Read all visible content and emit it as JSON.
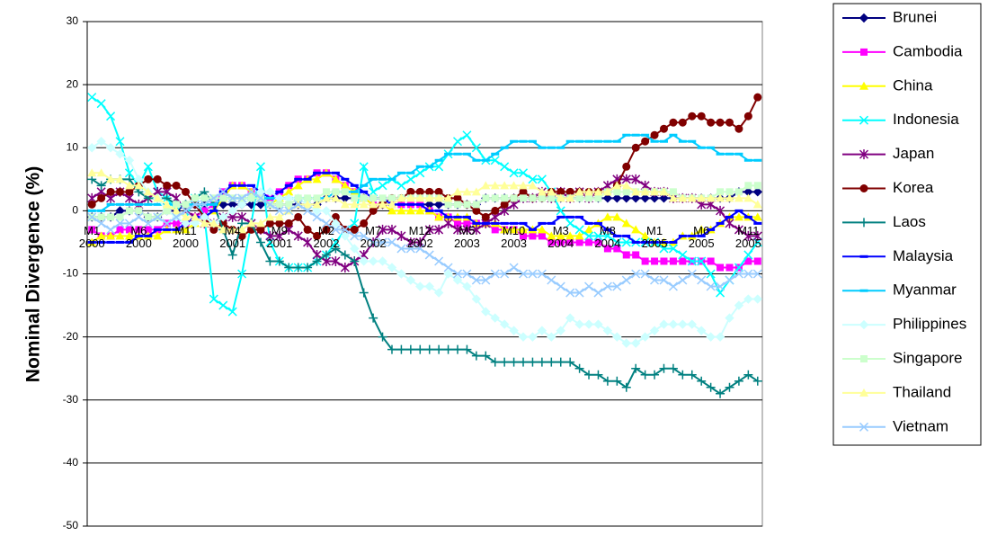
{
  "chart_data": {
    "type": "line",
    "ylabel": "Nominal Divergence (%)",
    "categories": [
      "M1 2000",
      null,
      null,
      null,
      null,
      "M6 2000",
      null,
      null,
      null,
      null,
      "M11 2000",
      null,
      null,
      null,
      null,
      "M4 2001",
      null,
      null,
      null,
      null,
      "M9 2001",
      null,
      null,
      null,
      null,
      "M2 2002",
      null,
      null,
      null,
      null,
      "M7 2002",
      null,
      null,
      null,
      null,
      "M12 2002",
      null,
      null,
      null,
      null,
      "M5 2003",
      null,
      null,
      null,
      null,
      "M10 2003",
      null,
      null,
      null,
      null,
      "M3 2004",
      null,
      null,
      null,
      null,
      "M8 2004",
      null,
      null,
      null,
      null,
      "M1 2005",
      null,
      null,
      null,
      null,
      "M6 2005",
      null,
      null,
      null,
      null,
      "M11 2005",
      null
    ],
    "ylim": [
      -50,
      30
    ],
    "yticks": [
      -50,
      -40,
      -30,
      -20,
      -10,
      0,
      10,
      20,
      30
    ],
    "grid": true,
    "legend": "right",
    "series": [
      {
        "name": "Brunei",
        "color": "#000080",
        "marker": "diamond",
        "values": [
          -1,
          -1,
          -1,
          0,
          0,
          0,
          -1,
          -1,
          0,
          0,
          1,
          1,
          1,
          1,
          1,
          1,
          1,
          1,
          1,
          1,
          1,
          1,
          1,
          1,
          1,
          2,
          2,
          2,
          2,
          2,
          1,
          1,
          1,
          1,
          1,
          1,
          1,
          1,
          1,
          1,
          1,
          1,
          2,
          2,
          2,
          2,
          2,
          2,
          2,
          2,
          2,
          2,
          2,
          2,
          2,
          2,
          2,
          2,
          2,
          2,
          2,
          2,
          2,
          2,
          2,
          2,
          2,
          2,
          2,
          3,
          3,
          3
        ]
      },
      {
        "name": "Cambodia",
        "color": "#ff00ff",
        "marker": "square",
        "values": [
          -3,
          -4,
          -4,
          -3,
          -3,
          -3,
          -3,
          -3,
          -2,
          -2,
          -2,
          -1,
          0,
          1,
          3,
          4,
          4,
          3,
          2,
          2,
          3,
          4,
          5,
          5,
          6,
          6,
          5,
          4,
          3,
          2,
          1,
          1,
          1,
          1,
          1,
          1,
          0,
          -1,
          -1,
          -2,
          -2,
          -2,
          -2,
          -3,
          -3,
          -3,
          -4,
          -4,
          -4,
          -5,
          -5,
          -5,
          -5,
          -5,
          -5,
          -6,
          -6,
          -7,
          -7,
          -8,
          -8,
          -8,
          -8,
          -8,
          -8,
          -8,
          -8,
          -9,
          -9,
          -9,
          -8,
          -8
        ]
      },
      {
        "name": "China",
        "color": "#ffff00",
        "marker": "triangle",
        "values": [
          -5,
          -4,
          -4,
          -4,
          -4,
          -4,
          -4,
          -4,
          -3,
          -3,
          -3,
          -2,
          -1,
          0,
          2,
          4,
          4,
          3,
          2,
          1,
          2,
          3,
          4,
          5,
          5,
          6,
          5,
          4,
          3,
          2,
          1,
          1,
          0,
          0,
          0,
          0,
          0,
          -1,
          -1,
          -1,
          -1,
          -2,
          -2,
          -2,
          -3,
          -3,
          -3,
          -3,
          -3,
          -4,
          -4,
          -4,
          -4,
          -3,
          -2,
          -1,
          -1,
          -2,
          -3,
          -4,
          -5,
          -5,
          -5,
          -4,
          -4,
          -3,
          -3,
          -2,
          -1,
          -1,
          -1,
          -1
        ]
      },
      {
        "name": "Indonesia",
        "color": "#00ffff",
        "marker": "x",
        "values": [
          18,
          17,
          15,
          11,
          6,
          4,
          7,
          3,
          2,
          0,
          -1,
          2,
          -1,
          -14,
          -15,
          -16,
          -10,
          -2,
          7,
          -5,
          -8,
          -9,
          -9,
          -9,
          -8,
          -7,
          -5,
          -3,
          -2,
          7,
          3,
          4,
          5,
          4,
          5,
          6,
          7,
          7,
          9,
          11,
          12,
          10,
          8,
          8,
          7,
          6,
          6,
          5,
          5,
          3,
          0,
          -2,
          -3,
          -4,
          -4,
          -4,
          -5,
          -5,
          -5,
          -5,
          -5,
          -6,
          -6,
          -7,
          -8,
          -8,
          -10,
          -13,
          -11,
          -9,
          -7,
          -5
        ]
      },
      {
        "name": "Japan",
        "color": "#800080",
        "marker": "star",
        "values": [
          2,
          3,
          2,
          3,
          2,
          1,
          2,
          3,
          3,
          2,
          0,
          -1,
          -2,
          -2,
          -1,
          -1,
          -1,
          -2,
          -3,
          -4,
          -4,
          -3,
          -4,
          -5,
          -7,
          -8,
          -8,
          -9,
          -8,
          -7,
          -5,
          -3,
          -3,
          -4,
          -5,
          -5,
          -3,
          -3,
          -2,
          -3,
          -3,
          -3,
          -2,
          -1,
          0,
          1,
          2,
          2,
          3,
          2,
          3,
          2,
          3,
          2,
          3,
          4,
          5,
          5,
          5,
          4,
          3,
          3,
          2,
          2,
          2,
          1,
          1,
          0,
          -2,
          -3,
          -4,
          -4
        ]
      },
      {
        "name": "Korea",
        "color": "#800000",
        "marker": "circle",
        "values": [
          1,
          2,
          3,
          3,
          3,
          4,
          5,
          5,
          4,
          4,
          3,
          1,
          -1,
          -3,
          -2,
          -3,
          -4,
          -3,
          -3,
          -2,
          -2,
          -2,
          -1,
          -3,
          -4,
          -3,
          -1,
          -3,
          -3,
          -2,
          0,
          1,
          2,
          2,
          3,
          3,
          3,
          3,
          2,
          2,
          1,
          0,
          -1,
          0,
          1,
          2,
          3,
          2,
          2,
          3,
          3,
          3,
          3,
          3,
          3,
          3,
          4,
          7,
          10,
          11,
          12,
          13,
          14,
          14,
          15,
          15,
          14,
          14,
          14,
          13,
          15,
          18
        ]
      },
      {
        "name": "Laos",
        "color": "#008080",
        "marker": "plus",
        "values": [
          5,
          4,
          5,
          5,
          5,
          3,
          2,
          2,
          2,
          1,
          1,
          2,
          3,
          1,
          -3,
          -7,
          -2,
          -2,
          -5,
          -8,
          -8,
          -9,
          -9,
          -9,
          -8,
          -7,
          -6,
          -7,
          -8,
          -13,
          -17,
          -20,
          -22,
          -22,
          -22,
          -22,
          -22,
          -22,
          -22,
          -22,
          -22,
          -23,
          -23,
          -24,
          -24,
          -24,
          -24,
          -24,
          -24,
          -24,
          -24,
          -24,
          -25,
          -26,
          -26,
          -27,
          -27,
          -28,
          -25,
          -26,
          -26,
          -25,
          -25,
          -26,
          -26,
          -27,
          -28,
          -29,
          -28,
          -27,
          -26,
          -27
        ]
      },
      {
        "name": "Malaysia",
        "color": "#0000ff",
        "marker": "dash",
        "values": [
          -5,
          -5,
          -5,
          -5,
          -5,
          -4,
          -4,
          -3,
          -3,
          -3,
          -2,
          -1,
          -1,
          0,
          3,
          4,
          4,
          4,
          3,
          2,
          3,
          4,
          5,
          5,
          6,
          6,
          6,
          5,
          4,
          3,
          2,
          2,
          1,
          1,
          1,
          1,
          0,
          0,
          -1,
          -1,
          -1,
          -2,
          -2,
          -2,
          -2,
          -2,
          -2,
          -3,
          -2,
          -2,
          -1,
          -1,
          -1,
          -2,
          -2,
          -3,
          -4,
          -4,
          -5,
          -5,
          -5,
          -5,
          -5,
          -4,
          -4,
          -4,
          -3,
          -2,
          -1,
          0,
          -1,
          -2
        ]
      },
      {
        "name": "Myanmar",
        "color": "#00ccff",
        "marker": "dash",
        "values": [
          0,
          0,
          1,
          1,
          1,
          1,
          1,
          1,
          1,
          1,
          1,
          1,
          1,
          1,
          2,
          2,
          2,
          2,
          2,
          2,
          2,
          2,
          2,
          2,
          2,
          2,
          3,
          3,
          3,
          4,
          5,
          5,
          5,
          6,
          6,
          7,
          7,
          8,
          9,
          9,
          9,
          8,
          8,
          9,
          10,
          11,
          11,
          11,
          10,
          10,
          10,
          11,
          11,
          11,
          11,
          11,
          11,
          12,
          12,
          12,
          11,
          11,
          12,
          11,
          11,
          10,
          10,
          9,
          9,
          9,
          8,
          8
        ]
      },
      {
        "name": "Philippines",
        "color": "#ccffff",
        "marker": "diamond",
        "values": [
          10,
          11,
          10,
          9,
          8,
          5,
          3,
          2,
          0,
          -1,
          -2,
          -2,
          -1,
          -2,
          -1,
          0,
          1,
          2,
          3,
          3,
          2,
          2,
          2,
          1,
          0,
          0,
          -2,
          -4,
          -6,
          -8,
          -8,
          -8,
          -9,
          -10,
          -11,
          -12,
          -12,
          -13,
          -10,
          -11,
          -12,
          -14,
          -16,
          -17,
          -18,
          -19,
          -20,
          -20,
          -19,
          -20,
          -19,
          -17,
          -18,
          -18,
          -18,
          -19,
          -20,
          -21,
          -21,
          -20,
          -19,
          -18,
          -18,
          -18,
          -18,
          -19,
          -20,
          -20,
          -17,
          -15,
          -14,
          -14
        ]
      },
      {
        "name": "Singapore",
        "color": "#ccffcc",
        "marker": "square",
        "values": [
          -1,
          -1,
          -1,
          -1,
          0,
          0,
          -1,
          -1,
          0,
          1,
          1,
          2,
          2,
          2,
          2,
          2,
          2,
          2,
          2,
          1,
          1,
          1,
          2,
          2,
          2,
          3,
          3,
          3,
          2,
          2,
          2,
          2,
          2,
          2,
          2,
          2,
          2,
          2,
          1,
          1,
          1,
          1,
          2,
          2,
          2,
          2,
          2,
          2,
          2,
          2,
          2,
          2,
          2,
          2,
          2,
          3,
          3,
          3,
          3,
          3,
          3,
          3,
          3,
          2,
          2,
          2,
          2,
          3,
          3,
          3,
          4,
          4
        ]
      },
      {
        "name": "Thailand",
        "color": "#ffff99",
        "marker": "triangle",
        "values": [
          6,
          6,
          5,
          5,
          4,
          4,
          3,
          2,
          1,
          0,
          -1,
          -1,
          -2,
          -2,
          -3,
          -3,
          -3,
          -2,
          -2,
          -1,
          -1,
          0,
          1,
          1,
          1,
          2,
          2,
          1,
          1,
          1,
          1,
          1,
          1,
          2,
          2,
          2,
          2,
          2,
          2,
          3,
          3,
          3,
          4,
          4,
          4,
          4,
          4,
          4,
          3,
          3,
          2,
          2,
          3,
          3,
          3,
          3,
          4,
          4,
          3,
          3,
          3,
          3,
          2,
          2,
          2,
          2,
          2,
          2,
          2,
          2,
          2,
          1
        ]
      },
      {
        "name": "Vietnam",
        "color": "#99ccff",
        "marker": "x",
        "values": [
          -1,
          -2,
          -3,
          -2,
          -2,
          -1,
          -2,
          -1,
          -2,
          -1,
          0,
          1,
          1,
          2,
          3,
          2,
          2,
          3,
          2,
          1,
          0,
          0,
          1,
          0,
          -1,
          -2,
          -3,
          -3,
          -4,
          -4,
          -5,
          -5,
          -5,
          -6,
          -6,
          -6,
          -7,
          -8,
          -9,
          -10,
          -10,
          -11,
          -11,
          -10,
          -10,
          -9,
          -10,
          -10,
          -10,
          -11,
          -12,
          -13,
          -13,
          -12,
          -13,
          -12,
          -12,
          -11,
          -10,
          -10,
          -11,
          -11,
          -12,
          -11,
          -10,
          -11,
          -12,
          -12,
          -11,
          -10,
          -10,
          -10
        ]
      }
    ]
  }
}
